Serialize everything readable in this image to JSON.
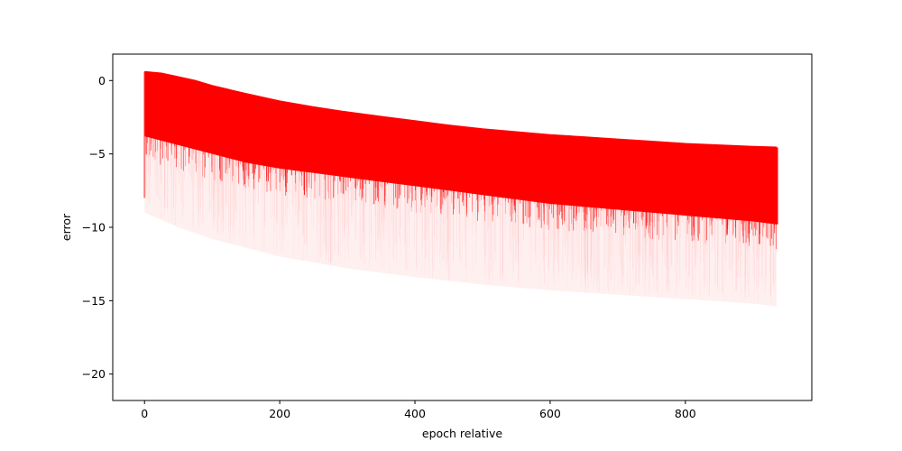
{
  "chart_data": {
    "type": "line",
    "title": "",
    "xlabel": "epoch relative",
    "ylabel": "error",
    "xlim": [
      -47,
      987
    ],
    "ylim": [
      -21.8,
      1.8
    ],
    "xticks": [
      0,
      200,
      400,
      600,
      800
    ],
    "yticks": [
      0,
      -5,
      -10,
      -15,
      -20
    ],
    "grid": false,
    "series_color": "#ff0000",
    "series": [
      {
        "role": "upper-envelope",
        "x": [
          0,
          25,
          50,
          75,
          100,
          150,
          200,
          250,
          300,
          350,
          400,
          450,
          500,
          550,
          600,
          650,
          700,
          750,
          800,
          850,
          900,
          935
        ],
        "values": [
          0.6,
          0.5,
          0.25,
          0.0,
          -0.35,
          -0.9,
          -1.4,
          -1.8,
          -2.15,
          -2.45,
          -2.75,
          -3.05,
          -3.3,
          -3.5,
          -3.7,
          -3.85,
          -4.0,
          -4.15,
          -4.3,
          -4.4,
          -4.5,
          -4.55
        ]
      },
      {
        "role": "dense-lower-bound",
        "x": [
          0,
          25,
          50,
          75,
          100,
          150,
          200,
          250,
          300,
          350,
          400,
          450,
          500,
          550,
          600,
          650,
          700,
          750,
          800,
          850,
          900,
          935
        ],
        "values": [
          -3.8,
          -4.1,
          -4.4,
          -4.7,
          -5.0,
          -5.6,
          -6.0,
          -6.3,
          -6.6,
          -6.9,
          -7.2,
          -7.5,
          -7.8,
          -8.1,
          -8.4,
          -8.6,
          -8.8,
          -9.0,
          -9.2,
          -9.4,
          -9.6,
          -9.8
        ]
      },
      {
        "role": "faint-lower-bound",
        "x": [
          0,
          50,
          100,
          200,
          300,
          400,
          500,
          600,
          700,
          800,
          900,
          935
        ],
        "values": [
          -9.0,
          -10.0,
          -10.8,
          -12.0,
          -12.8,
          -13.4,
          -13.9,
          -14.3,
          -14.6,
          -14.9,
          -15.2,
          -15.4
        ]
      }
    ]
  }
}
